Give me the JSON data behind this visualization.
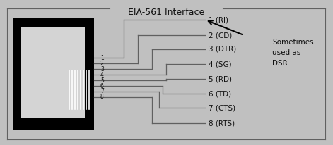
{
  "title": "EIA-561 Interface",
  "bg_color": "#c0c0c0",
  "signal_labels": [
    "1 (RI)",
    "2 (CD)",
    "3 (DTR)",
    "4 (SG)",
    "5 (RD)",
    "6 (TD)",
    "7 (CTS)",
    "8 (RTS)"
  ],
  "pin_labels": [
    "1",
    "2",
    "3",
    "4",
    "5",
    "6",
    "7",
    "8"
  ],
  "note_lines": [
    "Sometimes",
    "used as",
    "DSR"
  ],
  "line_color": "#606060",
  "text_color": "#111111"
}
